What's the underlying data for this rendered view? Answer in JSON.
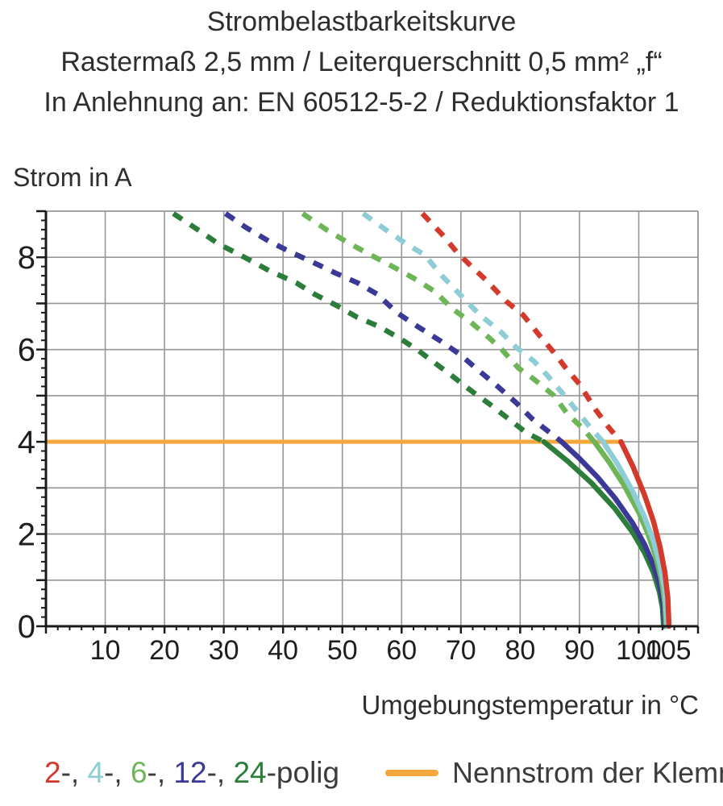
{
  "title": {
    "line1": "Strombelastbarkeitskurve",
    "line2": "Rastermaß 2,5 mm / Leiterquerschnitt 0,5 mm² „f“",
    "line3": "In Anlehnung an: EN 60512-5-2 / Reduktionsfaktor 1"
  },
  "legend": {
    "poles": {
      "items": [
        {
          "label": "2",
          "color": "#d43a2c"
        },
        {
          "label": "4",
          "color": "#8ecdd6"
        },
        {
          "label": "6",
          "color": "#6eb558"
        },
        {
          "label": "12",
          "color": "#3a3a96"
        },
        {
          "label": "24",
          "color": "#2b7d39"
        }
      ],
      "separator": "-, ",
      "suffix": "-polig"
    },
    "nennstrom": {
      "label": "Nennstrom der Klemme",
      "color": "#f3a73d"
    }
  },
  "chart_data": {
    "type": "line",
    "title": "Strombelastbarkeitskurve",
    "xlabel": "Umgebungstemperatur in °C",
    "ylabel": "Strom in A",
    "xlim": [
      0,
      110
    ],
    "ylim": [
      0,
      9
    ],
    "x_tick_labels": [
      10,
      20,
      30,
      40,
      50,
      60,
      70,
      80,
      90,
      100,
      105
    ],
    "y_tick_labels": [
      0,
      2,
      4,
      6,
      8
    ],
    "x_gridlines": [
      10,
      20,
      30,
      40,
      50,
      60,
      70,
      80,
      90,
      100
    ],
    "y_gridlines": [
      1,
      2,
      3,
      4,
      5,
      6,
      7,
      8
    ],
    "x_minor_tick_step": 2,
    "y_minor_tick_step": 0.2,
    "grid_color": "#969696",
    "axis_color": "#1a1a1a",
    "tick_label_color": "#1e1e1e",
    "nennstrom_line": {
      "value": 4.0,
      "x_start": 0,
      "x_end": 97,
      "color": "#f3a73d",
      "label": "Nennstrom der Klemme"
    },
    "series": [
      {
        "name": "24-polig",
        "color": "#2b7d39",
        "dashed_points": [
          [
            21.5,
            8.95
          ],
          [
            25.6,
            8.6
          ],
          [
            29,
            8.3
          ],
          [
            33.5,
            8.0
          ],
          [
            37.8,
            7.7
          ],
          [
            42.2,
            7.45
          ],
          [
            45.3,
            7.2
          ],
          [
            49.1,
            6.95
          ],
          [
            52.5,
            6.7
          ],
          [
            56.2,
            6.5
          ],
          [
            59.6,
            6.25
          ],
          [
            62.6,
            6.0
          ],
          [
            65.7,
            5.7
          ],
          [
            68.8,
            5.4
          ],
          [
            71.8,
            5.1
          ],
          [
            75,
            4.8
          ],
          [
            78,
            4.5
          ],
          [
            81,
            4.2
          ],
          [
            84,
            4.0
          ]
        ],
        "solid_points": [
          [
            84,
            4.0
          ],
          [
            88,
            3.58
          ],
          [
            92,
            3.11
          ],
          [
            96,
            2.55
          ],
          [
            99,
            2.03
          ],
          [
            101,
            1.59
          ],
          [
            102.5,
            1.16
          ],
          [
            103.5,
            0.74
          ],
          [
            104,
            0.4
          ],
          [
            104.2,
            0
          ]
        ]
      },
      {
        "name": "12-polig",
        "color": "#3a3a96",
        "dashed_points": [
          [
            30.3,
            8.95
          ],
          [
            33.7,
            8.65
          ],
          [
            37.6,
            8.35
          ],
          [
            41.5,
            8.1
          ],
          [
            44.9,
            7.9
          ],
          [
            49,
            7.65
          ],
          [
            52.5,
            7.45
          ],
          [
            55.9,
            7.2
          ],
          [
            59.2,
            6.8
          ],
          [
            62.7,
            6.5
          ],
          [
            66.4,
            6.2
          ],
          [
            69.8,
            5.9
          ],
          [
            72.5,
            5.6
          ],
          [
            76.2,
            5.2
          ],
          [
            79.3,
            4.85
          ],
          [
            82,
            4.5
          ],
          [
            85,
            4.2
          ],
          [
            87,
            4.0
          ]
        ],
        "solid_points": [
          [
            87,
            4.0
          ],
          [
            90,
            3.64
          ],
          [
            93,
            3.24
          ],
          [
            96,
            2.78
          ],
          [
            99,
            2.23
          ],
          [
            101,
            1.77
          ],
          [
            102.5,
            1.32
          ],
          [
            103.5,
            0.91
          ],
          [
            104.1,
            0.53
          ],
          [
            104.4,
            0
          ]
        ]
      },
      {
        "name": "6-polig",
        "color": "#6eb558",
        "dashed_points": [
          [
            43.3,
            8.95
          ],
          [
            47.3,
            8.6
          ],
          [
            51.2,
            8.3
          ],
          [
            54.8,
            8.05
          ],
          [
            58.5,
            7.8
          ],
          [
            62,
            7.55
          ],
          [
            65.7,
            7.25
          ],
          [
            68.4,
            6.9
          ],
          [
            71.6,
            6.6
          ],
          [
            74.8,
            6.25
          ],
          [
            76.9,
            6.0
          ],
          [
            79.7,
            5.6
          ],
          [
            82.4,
            5.35
          ],
          [
            85.7,
            5.0
          ],
          [
            88,
            4.6
          ],
          [
            90.5,
            4.3
          ],
          [
            92.5,
            4.0
          ]
        ],
        "solid_points": [
          [
            92.5,
            4.0
          ],
          [
            95,
            3.56
          ],
          [
            97.5,
            3.06
          ],
          [
            100,
            2.47
          ],
          [
            101.5,
            2.02
          ],
          [
            102.8,
            1.54
          ],
          [
            103.8,
            1.03
          ],
          [
            104.4,
            0.51
          ],
          [
            104.6,
            0
          ]
        ]
      },
      {
        "name": "4-polig",
        "color": "#8ecdd6",
        "dashed_points": [
          [
            53.5,
            8.95
          ],
          [
            57.3,
            8.6
          ],
          [
            60.7,
            8.3
          ],
          [
            63.9,
            8.05
          ],
          [
            66.8,
            7.6
          ],
          [
            69.8,
            7.2
          ],
          [
            73.2,
            6.75
          ],
          [
            76.6,
            6.4
          ],
          [
            79.3,
            6.05
          ],
          [
            82.3,
            5.75
          ],
          [
            84.5,
            5.45
          ],
          [
            87.5,
            5.0
          ],
          [
            90,
            4.6
          ],
          [
            92.2,
            4.25
          ],
          [
            94,
            4.0
          ]
        ],
        "solid_points": [
          [
            94,
            4.0
          ],
          [
            96.5,
            3.5
          ],
          [
            99,
            2.92
          ],
          [
            101,
            2.36
          ],
          [
            102.5,
            1.85
          ],
          [
            103.6,
            1.33
          ],
          [
            104.4,
            0.77
          ],
          [
            104.8,
            0
          ]
        ]
      },
      {
        "name": "2-polig",
        "color": "#d43a2c",
        "dashed_points": [
          [
            63.5,
            8.95
          ],
          [
            66.8,
            8.5
          ],
          [
            69.4,
            8.1
          ],
          [
            71.8,
            7.8
          ],
          [
            74.3,
            7.5
          ],
          [
            77.6,
            7.05
          ],
          [
            80.5,
            6.75
          ],
          [
            83.3,
            6.3
          ],
          [
            85.6,
            5.95
          ],
          [
            87.7,
            5.6
          ],
          [
            90,
            5.25
          ],
          [
            92.7,
            4.7
          ],
          [
            95,
            4.3
          ],
          [
            97,
            4.0
          ]
        ],
        "solid_points": [
          [
            97,
            4.0
          ],
          [
            99,
            3.47
          ],
          [
            101,
            2.84
          ],
          [
            102.5,
            2.27
          ],
          [
            103.6,
            1.72
          ],
          [
            104.4,
            1.18
          ],
          [
            104.9,
            0.63
          ],
          [
            105.1,
            0
          ]
        ]
      }
    ]
  }
}
